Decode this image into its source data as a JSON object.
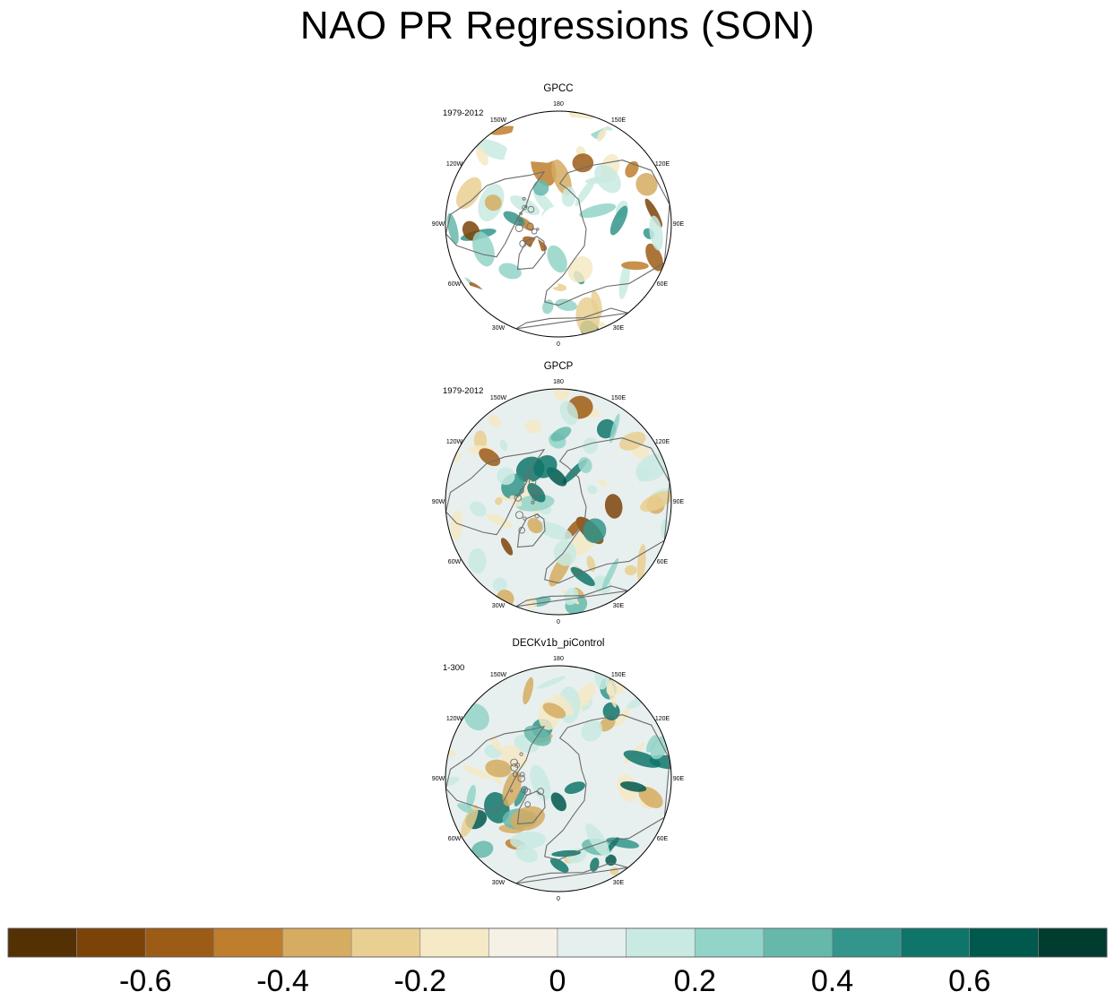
{
  "title": "NAO PR Regressions (SON)",
  "panels": [
    {
      "name": "GPCC",
      "period": "1979-2012"
    },
    {
      "name": "GPCP",
      "period": "1979-2012"
    },
    {
      "name": "DECKv1b_piControl",
      "period": "1-300"
    }
  ],
  "lon_labels": [
    {
      "text": "180",
      "lon": 180
    },
    {
      "text": "150E",
      "lon": 150
    },
    {
      "text": "120E",
      "lon": 120
    },
    {
      "text": "90E",
      "lon": 90
    },
    {
      "text": "60E",
      "lon": 60
    },
    {
      "text": "30E",
      "lon": 30
    },
    {
      "text": "0",
      "lon": 0
    },
    {
      "text": "30W",
      "lon": -30
    },
    {
      "text": "60W",
      "lon": -60
    },
    {
      "text": "90W",
      "lon": -90
    },
    {
      "text": "120W",
      "lon": -120
    },
    {
      "text": "150W",
      "lon": -150
    }
  ],
  "chart_data": {
    "type": "heatmap",
    "title": "NAO PR Regressions (SON)",
    "projection": "north-polar-stereographic",
    "panels": [
      "GPCC",
      "GPCP",
      "DECKv1b_piControl"
    ],
    "periods": [
      "1979-2012",
      "1979-2012",
      "1-300"
    ],
    "colorbar": {
      "levels": [
        -0.7,
        -0.6,
        -0.5,
        -0.4,
        -0.3,
        -0.2,
        -0.1,
        0,
        0.1,
        0.2,
        0.3,
        0.4,
        0.5,
        0.6,
        0.7
      ],
      "colors": [
        "#543005",
        "#7c4309",
        "#9c5c16",
        "#be7e2d",
        "#d5ac60",
        "#e9cf91",
        "#f5e9c6",
        "#f5f1e6",
        "#e5efee",
        "#c8eae2",
        "#93d4c8",
        "#66b8ab",
        "#33958b",
        "#0f756a",
        "#01584c",
        "#003c30"
      ],
      "tick_labels": [
        "-0.6",
        "-0.4",
        "-0.2",
        "0",
        "0.2",
        "0.4",
        "0.6"
      ],
      "tick_values": [
        -0.6,
        -0.4,
        -0.2,
        0,
        0.2,
        0.4,
        0.6
      ]
    }
  }
}
